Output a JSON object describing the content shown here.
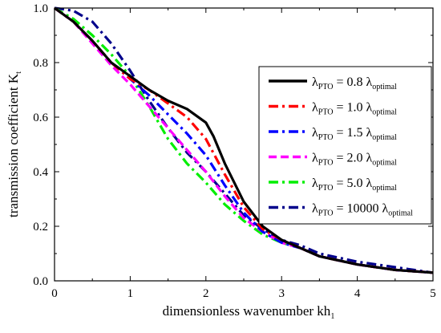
{
  "chart_data": {
    "type": "line",
    "xlabel": "dimensionless wavenumber kh",
    "xlabel_sub": "1",
    "ylabel": "transmission coefficient K",
    "ylabel_sub": "t",
    "xlim": [
      0,
      5
    ],
    "ylim": [
      0,
      1.0
    ],
    "xticks": [
      "0",
      "1",
      "2",
      "3",
      "4",
      "5"
    ],
    "yticks": [
      "0.0",
      "0.2",
      "0.4",
      "0.6",
      "0.8",
      "1.0"
    ],
    "grid": false,
    "legend_position": "right",
    "series": [
      {
        "name": "λPTO = 0.8 λoptimal",
        "legend": {
          "sym": "λ",
          "sub1": "PTO",
          "mid": " = 0.8 ",
          "sym2": "λ",
          "sub2": "optimal"
        },
        "color": "#000000",
        "dash": "solid",
        "x": [
          0,
          0.25,
          0.5,
          0.75,
          1.0,
          1.25,
          1.5,
          1.75,
          2.0,
          2.1,
          2.25,
          2.5,
          2.75,
          3.0,
          3.25,
          3.5,
          4.0,
          4.5,
          5.0
        ],
        "y": [
          1.0,
          0.95,
          0.88,
          0.8,
          0.75,
          0.7,
          0.66,
          0.63,
          0.58,
          0.53,
          0.43,
          0.29,
          0.2,
          0.15,
          0.12,
          0.09,
          0.06,
          0.04,
          0.03
        ]
      },
      {
        "name": "λPTO = 1.0 λoptimal",
        "legend": {
          "sym": "λ",
          "sub1": "PTO",
          "mid": " = 1.0 ",
          "sym2": "λ",
          "sub2": "optimal"
        },
        "color": "#ff0000",
        "dash": "dashdot",
        "x": [
          0,
          0.25,
          0.5,
          0.75,
          1.0,
          1.25,
          1.5,
          1.75,
          2.0,
          2.25,
          2.5,
          2.75,
          3.0,
          3.25,
          3.5,
          4.0,
          4.5,
          5.0
        ],
        "y": [
          1.0,
          0.95,
          0.88,
          0.8,
          0.74,
          0.7,
          0.65,
          0.6,
          0.52,
          0.39,
          0.27,
          0.19,
          0.15,
          0.12,
          0.09,
          0.06,
          0.04,
          0.03
        ]
      },
      {
        "name": "λPTO = 1.5 λoptimal",
        "legend": {
          "sym": "λ",
          "sub1": "PTO",
          "mid": " = 1.5 ",
          "sym2": "λ",
          "sub2": "optimal"
        },
        "color": "#0000ff",
        "dash": "dashdot",
        "x": [
          0,
          0.25,
          0.5,
          0.75,
          1.0,
          1.25,
          1.5,
          1.75,
          2.0,
          2.25,
          2.5,
          2.75,
          3.0,
          3.25,
          3.5,
          4.0,
          4.5,
          5.0
        ],
        "y": [
          1.0,
          0.95,
          0.88,
          0.8,
          0.74,
          0.68,
          0.61,
          0.54,
          0.46,
          0.35,
          0.25,
          0.18,
          0.14,
          0.12,
          0.09,
          0.06,
          0.04,
          0.03
        ]
      },
      {
        "name": "λPTO = 2.0 λoptimal",
        "legend": {
          "sym": "λ",
          "sub1": "PTO",
          "mid": " = 2.0 ",
          "sym2": "λ",
          "sub2": "optimal"
        },
        "color": "#ff00ff",
        "dash": "dashed",
        "x": [
          0,
          0.25,
          0.5,
          0.75,
          1.0,
          1.25,
          1.5,
          1.75,
          2.0,
          2.25,
          2.5,
          2.75,
          3.0,
          3.25,
          3.5,
          4.0,
          4.5,
          5.0
        ],
        "y": [
          1.0,
          0.95,
          0.87,
          0.79,
          0.72,
          0.64,
          0.56,
          0.48,
          0.4,
          0.31,
          0.23,
          0.18,
          0.14,
          0.12,
          0.09,
          0.06,
          0.04,
          0.03
        ]
      },
      {
        "name": "λPTO = 5.0 λoptimal",
        "legend": {
          "sym": "λ",
          "sub1": "PTO",
          "mid": " = 5.0 ",
          "sym2": "λ",
          "sub2": "optimal"
        },
        "color": "#00ee00",
        "dash": "dashdot",
        "x": [
          0,
          0.25,
          0.5,
          0.75,
          1.0,
          1.25,
          1.5,
          1.75,
          2.0,
          2.25,
          2.5,
          2.75,
          3.0,
          3.25,
          3.5,
          4.0,
          4.5,
          5.0
        ],
        "y": [
          1.0,
          0.96,
          0.9,
          0.83,
          0.75,
          0.64,
          0.52,
          0.43,
          0.36,
          0.28,
          0.22,
          0.17,
          0.14,
          0.12,
          0.09,
          0.06,
          0.04,
          0.03
        ]
      },
      {
        "name": "λPTO = 10000 λoptimal",
        "legend": {
          "sym": "λ",
          "sub1": "PTO",
          "mid": " = 10000 ",
          "sym2": "λ",
          "sub2": "optimal"
        },
        "color": "#00008b",
        "dash": "dashdot",
        "x": [
          0,
          0.25,
          0.5,
          0.75,
          1.0,
          1.25,
          1.5,
          1.75,
          2.0,
          2.25,
          2.5,
          2.75,
          3.0,
          3.25,
          3.5,
          4.0,
          4.5,
          5.0
        ],
        "y": [
          1.0,
          0.99,
          0.95,
          0.87,
          0.77,
          0.66,
          0.56,
          0.47,
          0.4,
          0.32,
          0.24,
          0.19,
          0.15,
          0.13,
          0.1,
          0.07,
          0.05,
          0.03
        ]
      }
    ]
  }
}
